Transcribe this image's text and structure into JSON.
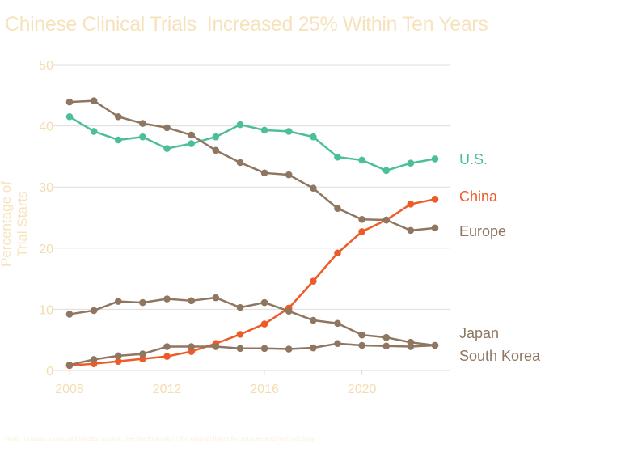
{
  "title": "Chinese Clinical Trials  Increased 25% Within Ten Years",
  "footnote": "Note: Includes a clinical-trial data source; see the footnote in the original figure for sources and methodology.",
  "chart_data": {
    "type": "line",
    "title": "Chinese Clinical Trials  Increased 25% Within Ten Years",
    "ylabel": "Percentage of Trial Starts",
    "xlabel": "",
    "x": [
      2008,
      2009,
      2010,
      2011,
      2012,
      2013,
      2014,
      2015,
      2016,
      2017,
      2018,
      2019,
      2020,
      2021,
      2022,
      2023
    ],
    "xlim": [
      2008,
      2023
    ],
    "ylim": [
      0,
      50
    ],
    "x_ticks": [
      "2008",
      "2012",
      "2016",
      "2020"
    ],
    "x_tick_values": [
      2008,
      2012,
      2016,
      2020
    ],
    "y_ticks": [
      "0",
      "10",
      "20",
      "30",
      "40",
      "50"
    ],
    "y_tick_values": [
      0,
      10,
      20,
      30,
      40,
      50
    ],
    "grid": "horizontal",
    "legend": "direct labels at right end of lines",
    "series": [
      {
        "name": "U.S.",
        "color": "#4dbf98",
        "values": [
          41.5,
          39.1,
          37.7,
          38.2,
          36.3,
          37.1,
          38.2,
          40.2,
          39.3,
          39.1,
          38.2,
          34.9,
          34.4,
          32.7,
          33.9,
          34.6
        ]
      },
      {
        "name": "China",
        "color": "#ee5a28",
        "values": [
          0.8,
          1.1,
          1.5,
          1.9,
          2.3,
          3.1,
          4.4,
          5.9,
          7.6,
          10.2,
          14.6,
          19.2,
          22.7,
          24.6,
          27.2,
          28.0
        ]
      },
      {
        "name": "Europe",
        "color": "#8e7660",
        "values": [
          43.9,
          44.1,
          41.5,
          40.4,
          39.7,
          38.5,
          36.0,
          34.0,
          32.3,
          32.0,
          29.8,
          26.5,
          24.7,
          24.6,
          22.9,
          23.3
        ]
      },
      {
        "name": "Japan",
        "color": "#8e7660",
        "values": [
          9.2,
          9.8,
          11.3,
          11.1,
          11.7,
          11.4,
          11.9,
          10.3,
          11.1,
          9.7,
          8.2,
          7.7,
          5.8,
          5.4,
          4.6,
          4.1
        ]
      },
      {
        "name": "South Korea",
        "color": "#8e7660",
        "values": [
          0.9,
          1.8,
          2.4,
          2.7,
          3.9,
          3.9,
          3.9,
          3.6,
          3.6,
          3.5,
          3.7,
          4.4,
          4.1,
          4.0,
          3.9,
          4.1
        ]
      }
    ]
  }
}
